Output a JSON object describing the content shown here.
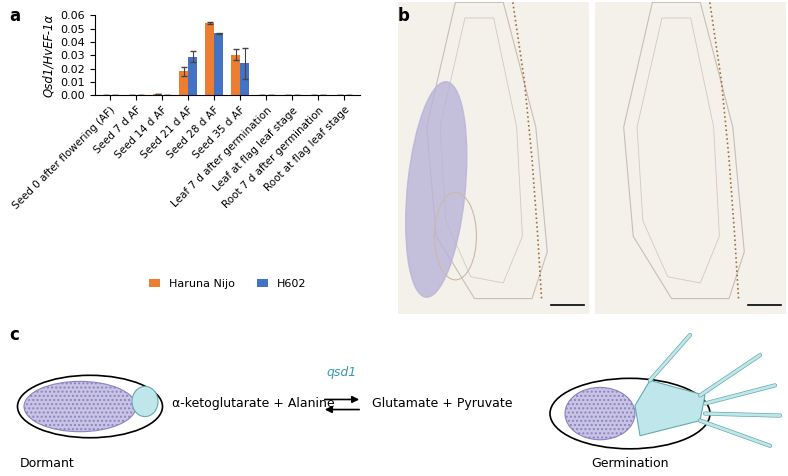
{
  "chart_data": {
    "type": "bar",
    "y_label": "Qsd1/HvEF-1α",
    "categories": [
      "Seed 0 after flowering (AF)",
      "Seed 7 d AF",
      "Seed 14 d AF",
      "Seed 21 d AF",
      "Seed 28 d AF",
      "Seed 35 d AF",
      "Leaf 7 d after germination",
      "Leaf at flag leaf stage",
      "Root 7 d after germination",
      "Root at flag leaf stage"
    ],
    "series": [
      {
        "name": "Haruna Nijo",
        "color": "#ed7d31",
        "values": [
          0,
          0,
          0.001,
          0.018,
          0.054,
          0.0305,
          0,
          0,
          0,
          0
        ],
        "errors": [
          0,
          0,
          0.0002,
          0.0035,
          0.0007,
          0.004,
          0,
          0,
          0,
          0
        ]
      },
      {
        "name": "H602",
        "color": "#4472c4",
        "values": [
          0,
          0,
          0.0003,
          0.029,
          0.0465,
          0.024,
          0,
          0,
          0,
          0
        ],
        "errors": [
          0,
          0,
          0.0001,
          0.004,
          0.0005,
          0.0115,
          0,
          0,
          0,
          0
        ]
      }
    ],
    "ylim": [
      0,
      0.06
    ],
    "yticks": [
      {
        "value": 0,
        "label": "0.00"
      },
      {
        "value": 0.01,
        "label": "0.01"
      },
      {
        "value": 0.02,
        "label": "0.02"
      },
      {
        "value": 0.03,
        "label": "0.03"
      },
      {
        "value": 0.04,
        "label": "0.04"
      },
      {
        "value": 0.05,
        "label": "0.05"
      },
      {
        "value": 0.06,
        "label": "0.06"
      }
    ],
    "legend": "lower center",
    "grid": false
  },
  "panels": [
    "a",
    "b",
    "c"
  ],
  "diagram": {
    "left_state": "Dormant",
    "right_state": "Germination",
    "reaction_left": "α-ketoglutarate + Alanine",
    "reaction_right": "Glutamate + Pyruvate",
    "enzyme": "qsd1"
  }
}
